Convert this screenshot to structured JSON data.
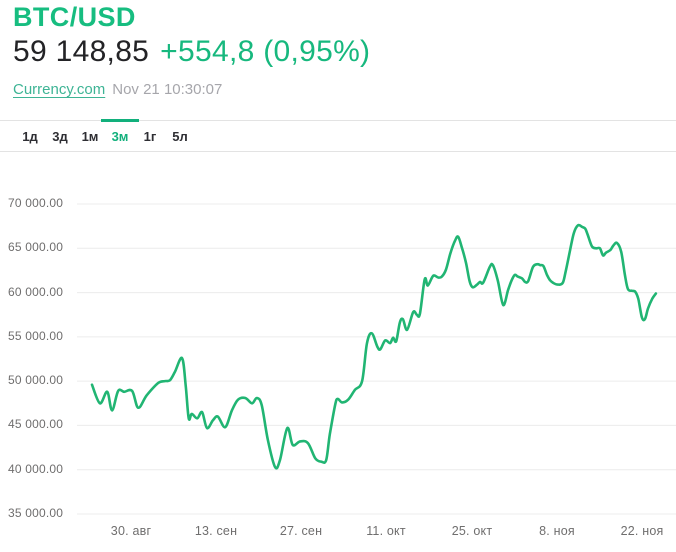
{
  "header": {
    "pair": "BTC/USD",
    "last_price": "59 148,85",
    "change": "+554,8 (0,95%)",
    "source": "Currency.com",
    "timestamp": "Nov 21 10:30:07"
  },
  "range_tabs": [
    {
      "label": "1д",
      "active": false
    },
    {
      "label": "3д",
      "active": false
    },
    {
      "label": "1м",
      "active": false
    },
    {
      "label": "3м",
      "active": true
    },
    {
      "label": "1г",
      "active": false
    },
    {
      "label": "5л",
      "active": false
    }
  ],
  "colors": {
    "brand_green": "#17bd80",
    "change_green": "#17b87e",
    "line_green": "#21b573",
    "link_teal": "#3eb495",
    "price_dark": "#232326",
    "timestamp_gray": "#a6a6ab",
    "axis_gray": "#6f6e6e",
    "grid_gray": "#ececec",
    "tab_active_green": "#12b07c"
  },
  "chart_data": {
    "type": "line",
    "title": "BTC/USD 3-month price",
    "x_unit": "days (t=0 ≈ Aug 23, 14-day ticks)",
    "y_unit": "USD",
    "ylim": [
      35000,
      70000
    ],
    "grid": "horizontal",
    "legend": "none",
    "y_ticks": [
      70000,
      65000,
      60000,
      55000,
      50000,
      45000,
      40000,
      35000
    ],
    "y_tick_labels": [
      "70 000.00",
      "65 000.00",
      "60 000.00",
      "55 000.00",
      "50 000.00",
      "45 000.00",
      "40 000.00",
      "35 000.00"
    ],
    "x_tick_labels": [
      "30. авг",
      "13. сен",
      "27. сен",
      "11. окт",
      "25. окт",
      "8. ноя",
      "22. ноя"
    ],
    "x_tick_days": [
      6.4,
      20.4,
      34.4,
      48.4,
      62.4,
      76.4,
      90.4
    ],
    "series": [
      {
        "name": "BTC/USD",
        "color": "#21b573",
        "points": [
          [
            0,
            49600
          ],
          [
            1.3,
            47500
          ],
          [
            2.5,
            48800
          ],
          [
            3.3,
            46700
          ],
          [
            4.3,
            48900
          ],
          [
            5.3,
            48800
          ],
          [
            6.6,
            48900
          ],
          [
            7.6,
            47000
          ],
          [
            9,
            48400
          ],
          [
            10.9,
            49800
          ],
          [
            12,
            50000
          ],
          [
            12.8,
            50100
          ],
          [
            13.6,
            51000
          ],
          [
            14.8,
            52600
          ],
          [
            15.4,
            49500
          ],
          [
            15.9,
            45800
          ],
          [
            16.4,
            46300
          ],
          [
            17.3,
            45800
          ],
          [
            18.1,
            46500
          ],
          [
            18.9,
            44700
          ],
          [
            19.9,
            45600
          ],
          [
            20.7,
            46000
          ],
          [
            21.9,
            44800
          ],
          [
            23,
            46700
          ],
          [
            24,
            47900
          ],
          [
            25.2,
            48100
          ],
          [
            26.3,
            47500
          ],
          [
            27.1,
            48100
          ],
          [
            27.9,
            47300
          ],
          [
            28.9,
            43400
          ],
          [
            30.1,
            40300
          ],
          [
            30.9,
            41100
          ],
          [
            32.1,
            44700
          ],
          [
            33,
            42800
          ],
          [
            34.2,
            43200
          ],
          [
            35.5,
            43000
          ],
          [
            36.7,
            41300
          ],
          [
            37.7,
            40900
          ],
          [
            38.5,
            41100
          ],
          [
            39.1,
            44000
          ],
          [
            40,
            47400
          ],
          [
            40.4,
            48000
          ],
          [
            41.1,
            47600
          ],
          [
            42.1,
            47900
          ],
          [
            43.2,
            49000
          ],
          [
            44.4,
            50000
          ],
          [
            45.2,
            54300
          ],
          [
            46,
            55400
          ],
          [
            46.9,
            53900
          ],
          [
            47.4,
            53600
          ],
          [
            48.2,
            54600
          ],
          [
            49,
            54300
          ],
          [
            49.5,
            54900
          ],
          [
            50,
            54500
          ],
          [
            50.6,
            56600
          ],
          [
            51.1,
            57000
          ],
          [
            51.8,
            55800
          ],
          [
            52.8,
            57800
          ],
          [
            53.4,
            57500
          ],
          [
            53.9,
            57600
          ],
          [
            54.7,
            61500
          ],
          [
            55.2,
            60800
          ],
          [
            56.1,
            61900
          ],
          [
            56.9,
            61700
          ],
          [
            57.5,
            61800
          ],
          [
            58.2,
            62600
          ],
          [
            58.9,
            64400
          ],
          [
            59.7,
            65900
          ],
          [
            60.2,
            66300
          ],
          [
            60.8,
            65100
          ],
          [
            61.5,
            63300
          ],
          [
            62.1,
            61200
          ],
          [
            62.6,
            60600
          ],
          [
            63.3,
            60900
          ],
          [
            63.8,
            61200
          ],
          [
            64.3,
            61100
          ],
          [
            65.4,
            62900
          ],
          [
            65.9,
            63100
          ],
          [
            66.7,
            61400
          ],
          [
            67.6,
            58600
          ],
          [
            68.4,
            60300
          ],
          [
            69,
            61400
          ],
          [
            69.5,
            62000
          ],
          [
            70,
            61800
          ],
          [
            70.7,
            61600
          ],
          [
            71.2,
            61200
          ],
          [
            71.7,
            61300
          ],
          [
            72.5,
            62900
          ],
          [
            73.2,
            63200
          ],
          [
            73.7,
            63100
          ],
          [
            74.2,
            63000
          ],
          [
            74.8,
            62000
          ],
          [
            75.3,
            61400
          ],
          [
            75.8,
            61100
          ],
          [
            76.6,
            60900
          ],
          [
            77.4,
            61100
          ],
          [
            77.9,
            62500
          ],
          [
            78.6,
            64800
          ],
          [
            79.2,
            66700
          ],
          [
            79.9,
            67600
          ],
          [
            80.6,
            67400
          ],
          [
            81.1,
            67200
          ],
          [
            81.5,
            66500
          ],
          [
            82.2,
            65200
          ],
          [
            82.9,
            65000
          ],
          [
            83.5,
            65000
          ],
          [
            84,
            64200
          ],
          [
            84.5,
            64500
          ],
          [
            85.2,
            64800
          ],
          [
            85.7,
            65300
          ],
          [
            86.3,
            65600
          ],
          [
            87,
            64600
          ],
          [
            87.6,
            62000
          ],
          [
            88.1,
            60400
          ],
          [
            88.8,
            60200
          ],
          [
            89.3,
            60100
          ],
          [
            89.8,
            59300
          ],
          [
            90.4,
            57200
          ],
          [
            90.9,
            57000
          ],
          [
            91.4,
            58200
          ],
          [
            92.1,
            59300
          ],
          [
            92.7,
            59900
          ]
        ]
      }
    ]
  }
}
